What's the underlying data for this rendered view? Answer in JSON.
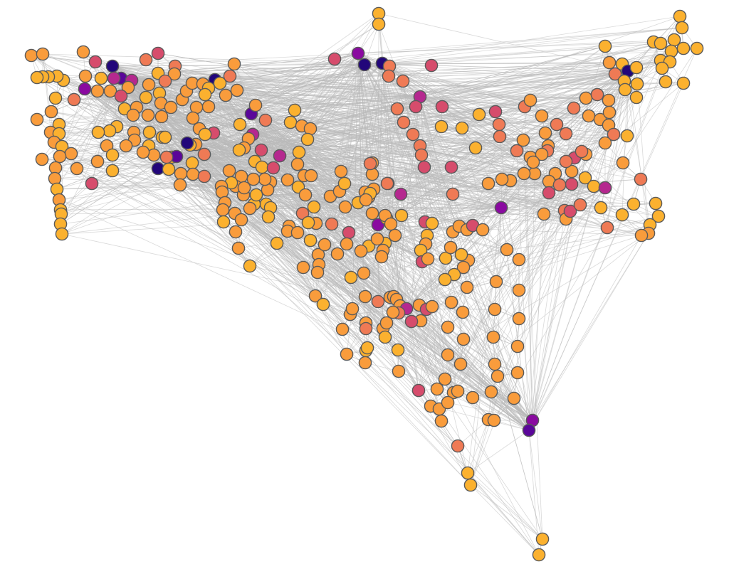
{
  "graph": {
    "type": "network",
    "directed": false,
    "node_color_scale": [
      "#22067a",
      "#5a0699",
      "#8a0aa0",
      "#b5288f",
      "#d64c6c",
      "#ef7a55",
      "#f99c3c",
      "#fbb12f"
    ],
    "edge_color": "#b9b9b9",
    "node_outline_color": "#5a5a5a"
  }
}
